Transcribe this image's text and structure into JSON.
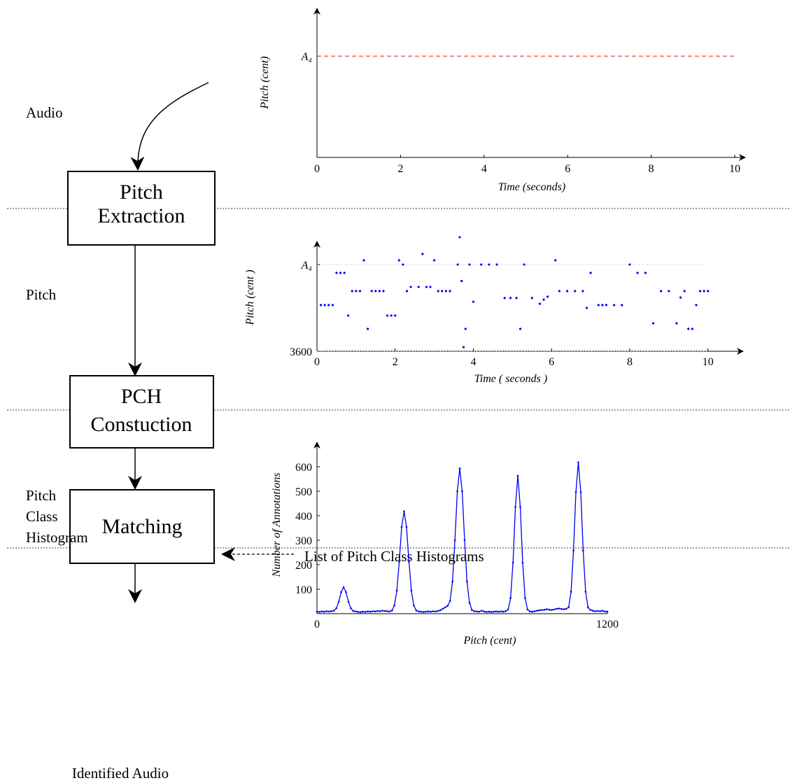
{
  "diagram": {
    "nodes": [
      {
        "label": [
          "Pitch",
          "Extraction"
        ]
      },
      {
        "label": [
          "PCH",
          "Constuction"
        ]
      },
      {
        "label": [
          "Matching"
        ]
      }
    ],
    "labels": {
      "audio": "Audio",
      "pitch": "Pitch",
      "pch": [
        "Pitch",
        "Class",
        "Histogram"
      ],
      "identified": "Identified Audio",
      "list": "List of Pitch Class Histograms"
    }
  },
  "chart_data": [
    {
      "type": "line",
      "xlabel": "Time (seconds)",
      "ylabel": "Pitch (cent)",
      "x": [
        0,
        10
      ],
      "series": [
        {
          "color": "#ff4444",
          "linestyle": "dashed",
          "values": [
            5700,
            5700
          ]
        }
      ],
      "xlim": [
        0,
        10.25
      ],
      "ylim": [
        3600,
        6690
      ],
      "xticks": [
        0,
        2,
        4,
        6,
        8,
        10
      ],
      "yticks": [
        {
          "value": 5700,
          "label": "A₄"
        }
      ]
    },
    {
      "type": "scatter",
      "xlabel": "Time ( seconds )",
      "ylabel": "Pitch  (cent )",
      "color": "#0000ff",
      "grid": true,
      "x": [
        0.1,
        0.2,
        0.3,
        0.4,
        0.5,
        0.6,
        0.7,
        0.8,
        0.9,
        1.0,
        1.1,
        1.2,
        1.3,
        1.4,
        1.5,
        1.6,
        1.7,
        1.8,
        1.9,
        2.0,
        2.1,
        2.2,
        2.3,
        2.4,
        2.6,
        2.7,
        2.8,
        2.9,
        3.0,
        3.1,
        3.2,
        3.3,
        3.4,
        3.6,
        3.65,
        3.7,
        3.75,
        3.8,
        3.9,
        4.0,
        4.2,
        4.4,
        4.6,
        4.8,
        4.95,
        5.1,
        5.2,
        5.3,
        5.5,
        5.7,
        5.8,
        5.9,
        6.1,
        6.2,
        6.4,
        6.6,
        6.8,
        6.9,
        7.0,
        7.2,
        7.3,
        7.4,
        7.6,
        7.8,
        8.0,
        8.2,
        8.4,
        8.6,
        8.8,
        9.0,
        9.2,
        9.3,
        9.4,
        9.5,
        9.6,
        9.7,
        9.8,
        9.9,
        10.0
      ],
      "values": [
        4718,
        4718,
        4718,
        4718,
        5497,
        5497,
        5497,
        4464,
        5057,
        5057,
        5057,
        5802,
        4142,
        5057,
        5057,
        5057,
        5057,
        4464,
        4464,
        4464,
        5802,
        5700,
        5057,
        5158,
        5158,
        5955,
        5158,
        5158,
        5802,
        5057,
        5057,
        5057,
        5057,
        5700,
        6361,
        5300,
        3700,
        4142,
        5700,
        4800,
        5700,
        5700,
        5700,
        4890,
        4890,
        4890,
        4142,
        5700,
        4890,
        4750,
        4850,
        4921,
        5802,
        5057,
        5057,
        5057,
        5057,
        4650,
        5497,
        4718,
        4718,
        4720,
        4718,
        4718,
        5700,
        5497,
        5497,
        4278,
        5057,
        5057,
        4278,
        4900,
        5057,
        4142,
        4142,
        4718,
        5057,
        5057,
        5057
      ],
      "xlim": [
        0,
        10.9
      ],
      "ylim": [
        3600,
        6260
      ],
      "xticks": [
        0,
        2,
        4,
        6,
        8,
        10
      ],
      "yticks": [
        3600,
        {
          "value": 5700,
          "label": "A₄"
        }
      ]
    },
    {
      "type": "line",
      "xlabel": "Pitch (cent)",
      "ylabel": "Number of Annotations",
      "markers": true,
      "x": [
        0,
        10,
        20,
        30,
        40,
        50,
        60,
        70,
        80,
        90,
        100,
        110,
        120,
        130,
        140,
        150,
        160,
        170,
        180,
        190,
        200,
        210,
        220,
        230,
        240,
        250,
        260,
        270,
        280,
        290,
        300,
        310,
        320,
        330,
        340,
        350,
        360,
        370,
        380,
        390,
        400,
        410,
        420,
        430,
        440,
        450,
        460,
        470,
        480,
        490,
        500,
        510,
        520,
        530,
        540,
        550,
        560,
        570,
        580,
        590,
        600,
        610,
        620,
        630,
        640,
        650,
        660,
        670,
        680,
        690,
        700,
        710,
        720,
        730,
        740,
        750,
        760,
        770,
        780,
        790,
        800,
        810,
        820,
        830,
        840,
        850,
        860,
        870,
        880,
        890,
        900,
        910,
        920,
        930,
        940,
        950,
        960,
        970,
        980,
        990,
        1000,
        1010,
        1020,
        1030,
        1040,
        1050,
        1060,
        1070,
        1080,
        1090,
        1100,
        1110,
        1120,
        1130,
        1140,
        1150,
        1160,
        1170,
        1180,
        1190,
        1200
      ],
      "series": [
        {
          "color": "#0000ee",
          "values": [
            8,
            7,
            9,
            8,
            10,
            9,
            10,
            12,
            22,
            49,
            88,
            108,
            88,
            49,
            22,
            11,
            9,
            7,
            6,
            8,
            7,
            9,
            8,
            10,
            9,
            11,
            10,
            12,
            11,
            10,
            9,
            13,
            34,
            94,
            213,
            354,
            418,
            354,
            213,
            94,
            34,
            13,
            9,
            8,
            7,
            8,
            9,
            8,
            10,
            9,
            11,
            14,
            20,
            26,
            32,
            52,
            131,
            300,
            500,
            593,
            500,
            300,
            131,
            45,
            15,
            10,
            9,
            8,
            12,
            9,
            7,
            8,
            7,
            8,
            9,
            8,
            9,
            8,
            10,
            17,
            64,
            208,
            436,
            563,
            436,
            208,
            64,
            17,
            9,
            8,
            10,
            12,
            14,
            15,
            16,
            18,
            16,
            15,
            17,
            20,
            21,
            19,
            18,
            20,
            26,
            90,
            258,
            496,
            618,
            496,
            258,
            90,
            26,
            15,
            12,
            10,
            11,
            10,
            12,
            9,
            8
          ]
        }
      ],
      "xlim": [
        0,
        1200
      ],
      "ylim": [
        0,
        700
      ],
      "xticks": [
        0,
        1200
      ],
      "yticks": [
        100,
        200,
        300,
        400,
        500,
        600
      ]
    }
  ]
}
